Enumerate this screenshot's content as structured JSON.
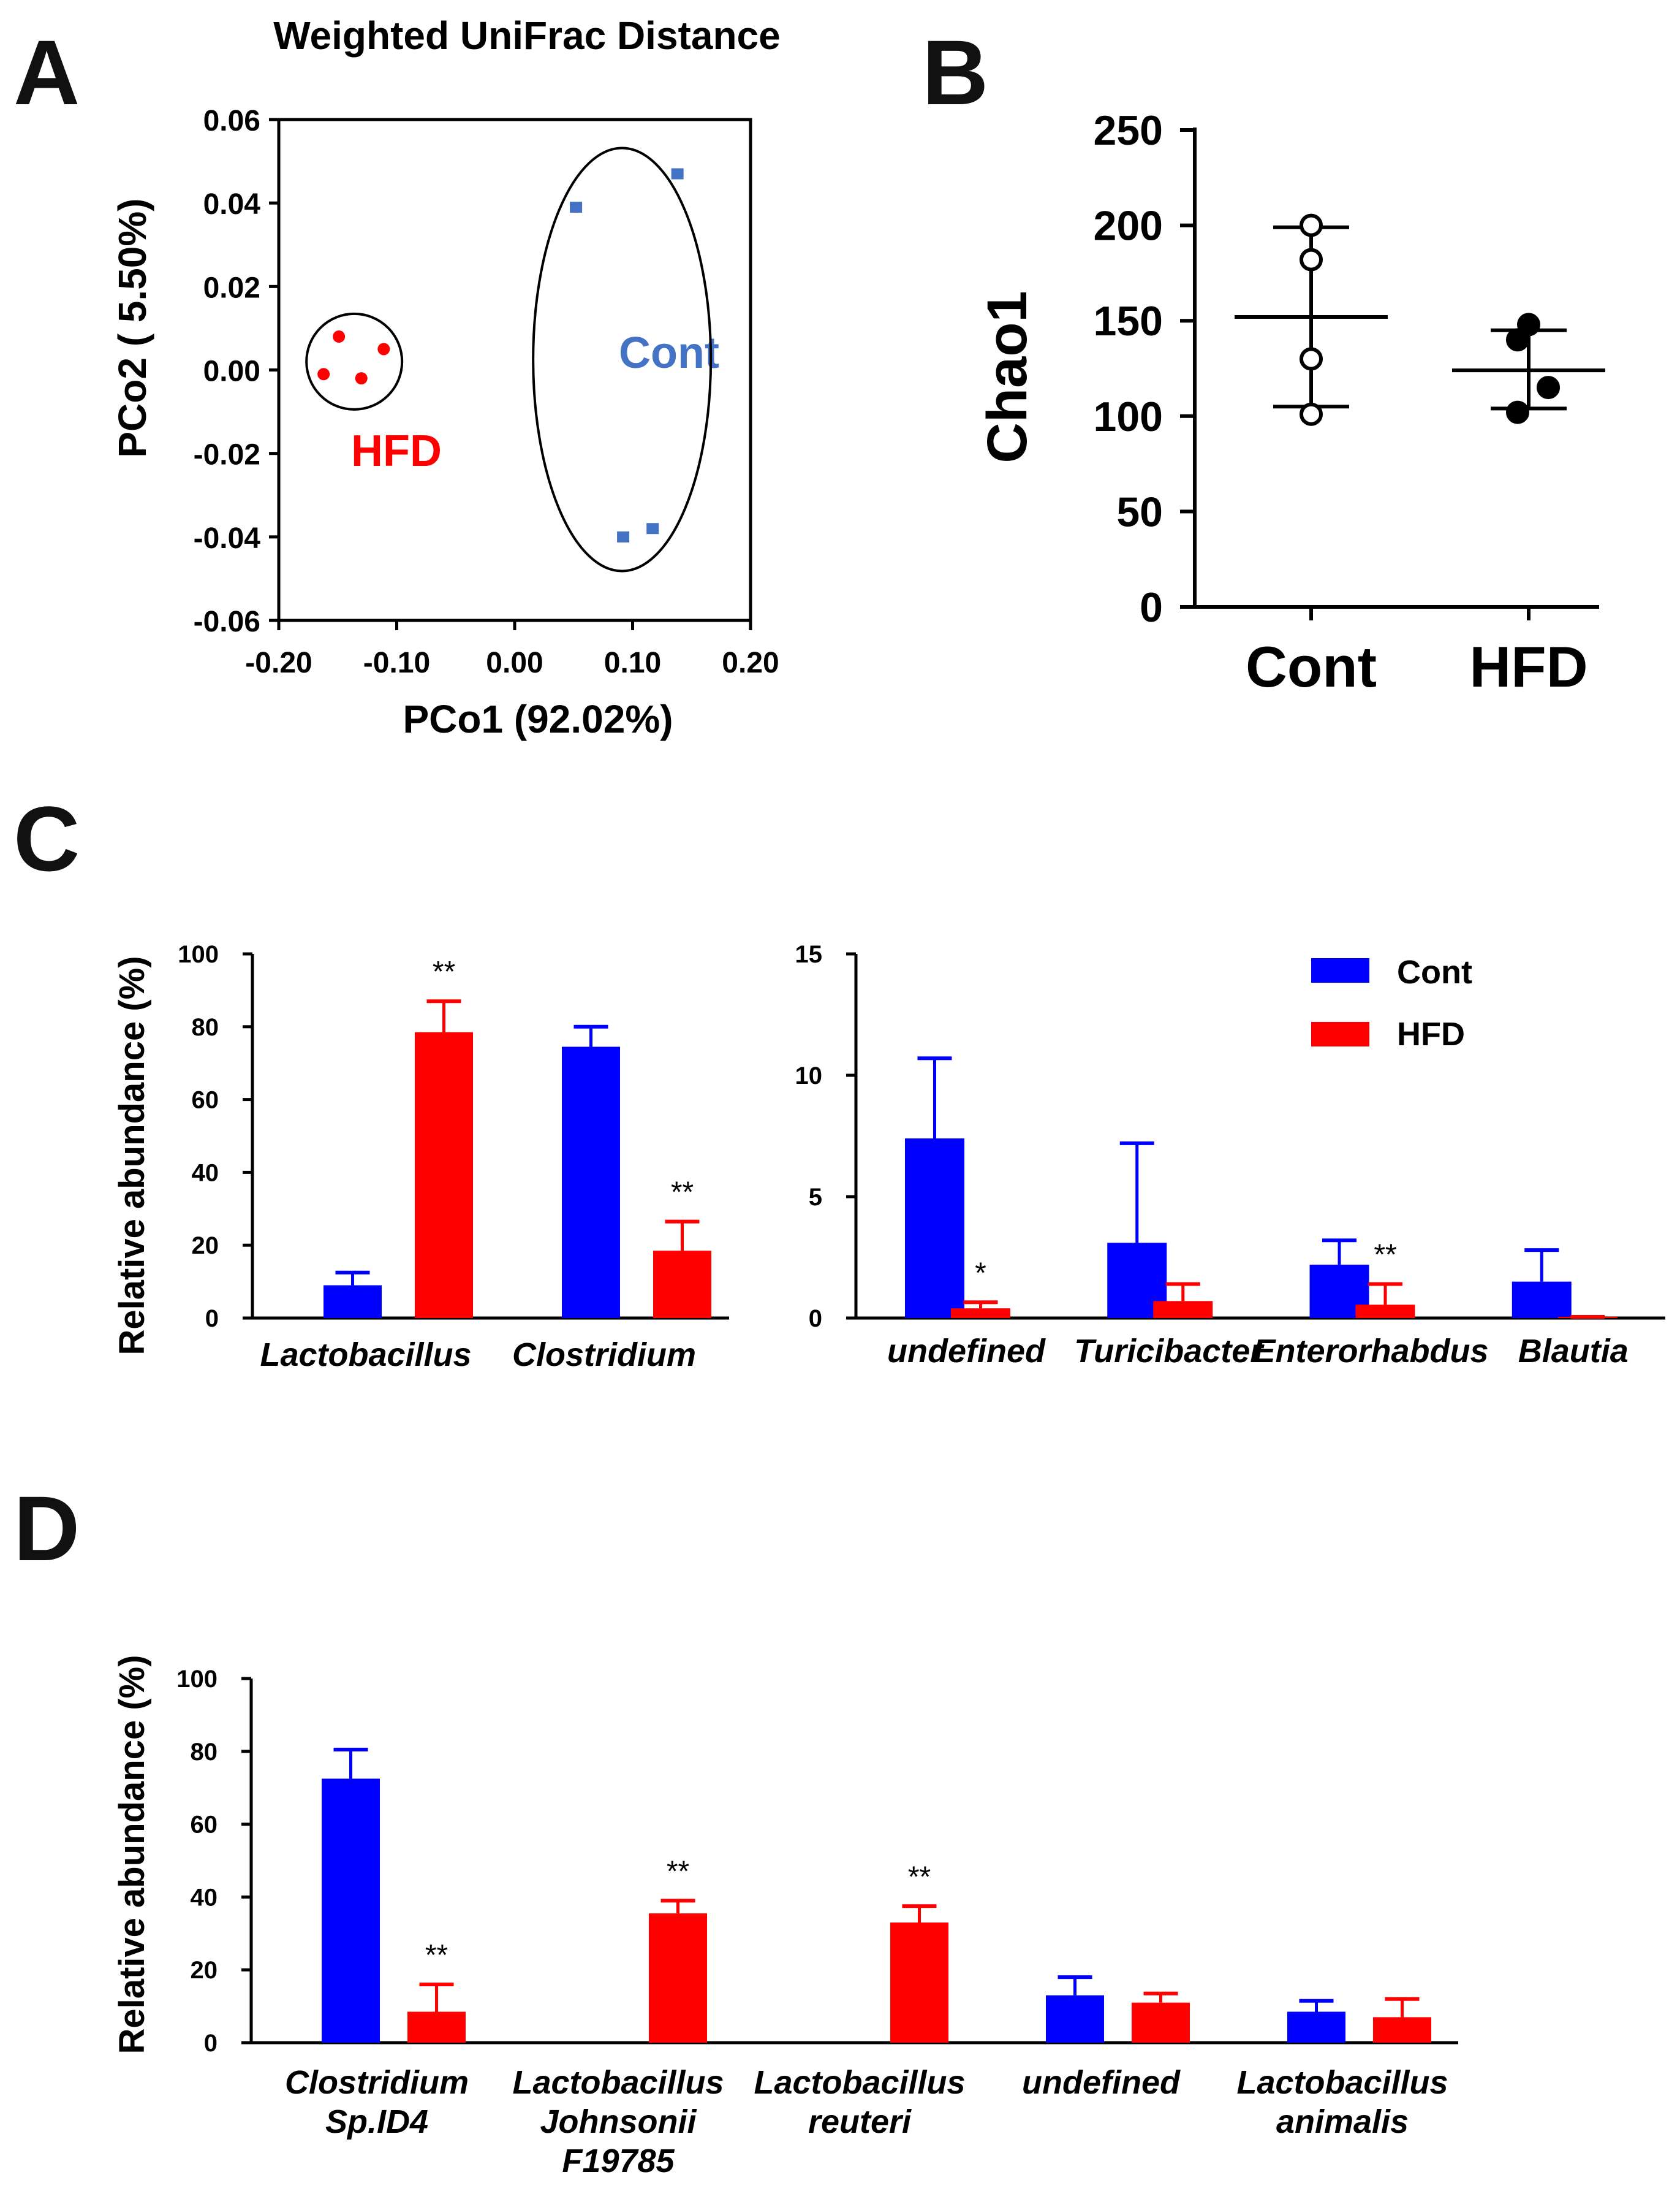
{
  "panels": [
    "A",
    "B",
    "C",
    "D"
  ],
  "colors": {
    "cont": "#0000ff",
    "hfd": "#ff0000",
    "cont_scatter": "#4472c4",
    "hfd_text": "#ff0000",
    "axis": "#000000"
  },
  "chart_data": [
    {
      "id": "A",
      "type": "scatter",
      "title": "Weighted UniFrac Distance",
      "xlabel": "PCo1 (92.02%)",
      "ylabel": "PCo2 ( 5.50%)",
      "xlim": [
        -0.2,
        0.2
      ],
      "ylim": [
        -0.06,
        0.06
      ],
      "xticks": [
        -0.2,
        -0.1,
        0.0,
        0.1,
        0.2
      ],
      "xtick_labels": [
        "-0.20",
        "-0.10",
        "0.00",
        "0.10",
        "0.20"
      ],
      "yticks": [
        0.06,
        0.04,
        0.02,
        0.0,
        -0.02,
        -0.04,
        -0.06
      ],
      "ytick_labels": [
        "0.06",
        "0.04",
        "0.02",
        "0.00",
        "-0.02",
        "-0.04",
        "-0.06"
      ],
      "series": [
        {
          "name": "Cont",
          "points": [
            [
              0.052,
              0.039
            ],
            [
              0.138,
              0.047
            ],
            [
              0.092,
              -0.04
            ],
            [
              0.117,
              -0.038
            ]
          ]
        },
        {
          "name": "HFD",
          "points": [
            [
              -0.149,
              0.008
            ],
            [
              -0.111,
              0.005
            ],
            [
              -0.162,
              -0.001
            ],
            [
              -0.13,
              -0.002
            ]
          ]
        }
      ],
      "grid": false
    },
    {
      "id": "B",
      "type": "scatter",
      "ylabel": "Chao1",
      "categories": [
        "Cont",
        "HFD"
      ],
      "ylim": [
        0,
        250
      ],
      "yticks": [
        0,
        50,
        100,
        150,
        200,
        250
      ],
      "series": [
        {
          "name": "Cont",
          "points": [
            101,
            130,
            182,
            200
          ],
          "mean": 152,
          "sd_low": 105,
          "sd_high": 199
        },
        {
          "name": "HFD",
          "points": [
            102,
            115,
            140,
            148
          ],
          "mean": 124,
          "sd_low": 104,
          "sd_high": 145
        }
      ]
    },
    {
      "id": "C1",
      "type": "bar",
      "ylabel": "Relative abundance (%)",
      "categories": [
        "Lactobacillus",
        "Clostridium"
      ],
      "ylim": [
        0,
        100
      ],
      "yticks": [
        0,
        20,
        40,
        60,
        80,
        100
      ],
      "series": [
        {
          "name": "Cont",
          "values": [
            9,
            74.5
          ],
          "errors": [
            3.5,
            5.5
          ]
        },
        {
          "name": "HFD",
          "values": [
            78.5,
            18.5
          ],
          "errors": [
            8.5,
            8.0
          ]
        }
      ],
      "annotations": [
        {
          "category": 0,
          "series": 1,
          "text": "**"
        },
        {
          "category": 1,
          "series": 1,
          "text": "**"
        }
      ]
    },
    {
      "id": "C2",
      "type": "bar",
      "categories": [
        "undefined",
        "Turicibacter",
        "Enterorhabdus",
        "Blautia"
      ],
      "ylim": [
        0,
        15
      ],
      "yticks": [
        0,
        5,
        10,
        15
      ],
      "legend": {
        "position": "top-right",
        "entries": [
          "Cont",
          "HFD"
        ]
      },
      "series": [
        {
          "name": "Cont",
          "values": [
            7.4,
            3.1,
            2.2,
            1.5
          ],
          "errors": [
            3.3,
            4.1,
            1.0,
            1.3
          ]
        },
        {
          "name": "HFD",
          "values": [
            0.4,
            0.7,
            0.55,
            0.05
          ],
          "errors": [
            0.25,
            0.7,
            0.85,
            0.0
          ]
        }
      ],
      "annotations": [
        {
          "category": 0,
          "series": 1,
          "text": "*"
        },
        {
          "category": 2,
          "series": 1,
          "text": "**"
        }
      ]
    },
    {
      "id": "D",
      "type": "bar",
      "ylabel": "Relative abundance (%)",
      "categories": [
        [
          "Clostridium",
          "Sp.ID4"
        ],
        [
          "Lactobacillus",
          "Johnsonii",
          "F19785"
        ],
        [
          "Lactobacillus",
          "reuteri"
        ],
        [
          "undefined"
        ],
        [
          "Lactobacillus",
          "animalis"
        ]
      ],
      "ylim": [
        0,
        100
      ],
      "yticks": [
        0,
        20,
        40,
        60,
        80,
        100
      ],
      "series": [
        {
          "name": "Cont",
          "values": [
            72.5,
            0,
            0,
            13,
            8.5
          ],
          "errors": [
            8.0,
            0,
            0,
            5.0,
            3.0
          ]
        },
        {
          "name": "HFD",
          "values": [
            8.5,
            35.5,
            33,
            11,
            7
          ],
          "errors": [
            7.5,
            3.5,
            4.5,
            2.5,
            5.0
          ]
        }
      ],
      "annotations": [
        {
          "category": 0,
          "series": 1,
          "text": "**"
        },
        {
          "category": 1,
          "series": 1,
          "text": "**"
        },
        {
          "category": 2,
          "series": 1,
          "text": "**"
        }
      ]
    }
  ],
  "scatter_labels": {
    "cont": "Cont",
    "hfd": "HFD"
  }
}
